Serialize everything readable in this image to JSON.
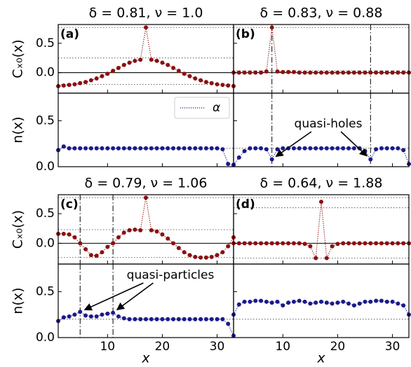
{
  "chart_data": [
    {
      "type": "line",
      "title": "δ = 0.81, ν = 1.0",
      "panel_label": "(a)",
      "ylabel": "Cₓ₀(x)",
      "x": [
        1,
        2,
        3,
        4,
        5,
        6,
        7,
        8,
        9,
        10,
        11,
        12,
        13,
        14,
        15,
        16,
        17,
        18,
        19,
        20,
        21,
        22,
        23,
        24,
        25,
        26,
        27,
        28,
        29,
        30,
        31,
        32,
        33
      ],
      "series": [
        {
          "color": "#8b1010",
          "values": [
            -0.23,
            -0.22,
            -0.21,
            -0.2,
            -0.18,
            -0.16,
            -0.13,
            -0.1,
            -0.06,
            -0.02,
            0.03,
            0.08,
            0.13,
            0.17,
            0.2,
            0.22,
            0.77,
            0.22,
            0.2,
            0.17,
            0.13,
            0.08,
            0.03,
            -0.02,
            -0.06,
            -0.1,
            -0.13,
            -0.16,
            -0.18,
            -0.2,
            -0.21,
            -0.22,
            -0.23
          ]
        }
      ],
      "xlim": [
        1,
        33
      ],
      "ylim": [
        -0.35,
        0.82
      ],
      "xticks": [
        10,
        20,
        30
      ],
      "yticks": [
        {
          "value": 0,
          "label": "0.0"
        },
        0.5
      ],
      "xtick_labels": false,
      "ytick_labels": true,
      "hlines": [
        {
          "value": 0,
          "style": "solid"
        },
        {
          "value": 0.77,
          "style": "dotted"
        },
        {
          "value": 0.25,
          "style": "dotted"
        },
        {
          "value": -0.2,
          "style": "dotted"
        }
      ],
      "vlines": []
    },
    {
      "type": "line",
      "ylabel": "n(x)",
      "x": [
        1,
        2,
        3,
        4,
        5,
        6,
        7,
        8,
        9,
        10,
        11,
        12,
        13,
        14,
        15,
        16,
        17,
        18,
        19,
        20,
        21,
        22,
        23,
        24,
        25,
        26,
        27,
        28,
        29,
        30,
        31,
        32,
        33
      ],
      "series": [
        {
          "name": "α",
          "color": "#1a1a8c",
          "values": [
            0.18,
            0.22,
            0.2,
            0.2,
            0.2,
            0.2,
            0.2,
            0.2,
            0.2,
            0.2,
            0.2,
            0.2,
            0.2,
            0.2,
            0.2,
            0.2,
            0.2,
            0.2,
            0.2,
            0.2,
            0.2,
            0.2,
            0.2,
            0.2,
            0.2,
            0.2,
            0.2,
            0.2,
            0.2,
            0.2,
            0.19,
            0.03,
            0.02
          ]
        }
      ],
      "xlim": [
        1,
        33
      ],
      "ylim": [
        0,
        0.8
      ],
      "xticks": [
        10,
        20,
        30
      ],
      "yticks": [
        {
          "value": 0,
          "label": "0.0"
        },
        0.5
      ],
      "xtick_labels": false,
      "ytick_labels": true,
      "legend": "upper right",
      "hlines": [
        {
          "value": 0.2,
          "style": "dotted"
        }
      ],
      "vlines": []
    },
    {
      "type": "line",
      "title": "δ = 0.83, ν = 0.88",
      "panel_label": "(b)",
      "x": [
        1,
        2,
        3,
        4,
        5,
        6,
        7,
        8,
        9,
        10,
        11,
        12,
        13,
        14,
        15,
        16,
        17,
        18,
        19,
        20,
        21,
        22,
        23,
        24,
        25,
        26,
        27,
        28,
        29,
        30,
        31,
        32,
        33
      ],
      "series": [
        {
          "color": "#8b1010",
          "values": [
            0,
            0,
            0,
            0,
            0,
            0,
            0.02,
            0.77,
            0.02,
            0.01,
            0.01,
            0.01,
            0,
            0,
            0,
            0,
            0,
            0,
            0,
            0,
            0,
            0,
            0,
            0,
            0,
            0,
            0,
            0,
            0,
            0,
            0,
            0,
            0
          ]
        }
      ],
      "xlim": [
        1,
        33
      ],
      "ylim": [
        -0.35,
        0.82
      ],
      "xticks": [
        10,
        20,
        30
      ],
      "yticks": [
        {
          "value": 0,
          "label": "0.0"
        },
        0.5
      ],
      "xtick_labels": false,
      "ytick_labels": false,
      "hlines": [
        {
          "value": 0,
          "style": "solid"
        },
        {
          "value": 0.77,
          "style": "dotted"
        },
        {
          "value": 0.03,
          "style": "dotted"
        }
      ],
      "vlines": [
        {
          "value": 8,
          "style": "dashdot"
        },
        {
          "value": 26,
          "style": "dashdot"
        }
      ]
    },
    {
      "type": "line",
      "x": [
        1,
        2,
        3,
        4,
        5,
        6,
        7,
        8,
        9,
        10,
        11,
        12,
        13,
        14,
        15,
        16,
        17,
        18,
        19,
        20,
        21,
        22,
        23,
        24,
        25,
        26,
        27,
        28,
        29,
        30,
        31,
        32,
        33
      ],
      "series": [
        {
          "color": "#1a1a8c",
          "values": [
            0.02,
            0.1,
            0.17,
            0.2,
            0.2,
            0.2,
            0.19,
            0.08,
            0.19,
            0.2,
            0.2,
            0.2,
            0.2,
            0.2,
            0.2,
            0.2,
            0.2,
            0.2,
            0.2,
            0.2,
            0.2,
            0.2,
            0.2,
            0.2,
            0.17,
            0.08,
            0.19,
            0.2,
            0.2,
            0.2,
            0.2,
            0.18,
            0.03
          ]
        }
      ],
      "xlim": [
        1,
        33
      ],
      "ylim": [
        0,
        0.8
      ],
      "xticks": [
        10,
        20,
        30
      ],
      "yticks": [
        {
          "value": 0,
          "label": "0.0"
        },
        0.5
      ],
      "xtick_labels": false,
      "ytick_labels": false,
      "hlines": [
        {
          "value": 0.2,
          "style": "dotted"
        }
      ],
      "vlines": [
        {
          "value": 8,
          "style": "dashdot"
        },
        {
          "value": 26,
          "style": "dashdot"
        }
      ],
      "annotation": {
        "text": "quasi-holes",
        "arrows_to": [
          8,
          26
        ]
      }
    },
    {
      "type": "line",
      "title": "δ = 0.79, ν = 1.06",
      "panel_label": "(c)",
      "ylabel": "Cₓ₀(x)",
      "x": [
        1,
        2,
        3,
        4,
        5,
        6,
        7,
        8,
        9,
        10,
        11,
        12,
        13,
        14,
        15,
        16,
        17,
        18,
        19,
        20,
        21,
        22,
        23,
        24,
        25,
        26,
        27,
        28,
        29,
        30,
        31,
        32,
        33
      ],
      "series": [
        {
          "color": "#8b1010",
          "values": [
            0.16,
            0.16,
            0.15,
            0.1,
            0,
            -0.1,
            -0.2,
            -0.21,
            -0.15,
            -0.06,
            0,
            0.1,
            0.18,
            0.22,
            0.23,
            0.22,
            0.77,
            0.22,
            0.2,
            0.15,
            0.08,
            0,
            -0.08,
            -0.15,
            -0.2,
            -0.23,
            -0.24,
            -0.24,
            -0.23,
            -0.2,
            -0.15,
            -0.05,
            0.1
          ]
        }
      ],
      "xlim": [
        1,
        33
      ],
      "ylim": [
        -0.35,
        0.82
      ],
      "xticks": [
        10,
        20,
        30
      ],
      "yticks": [
        {
          "value": 0,
          "label": "0.0"
        },
        0.5
      ],
      "xtick_labels": false,
      "ytick_labels": true,
      "hlines": [
        {
          "value": 0,
          "style": "solid"
        },
        {
          "value": 0.77,
          "style": "dotted"
        },
        {
          "value": 0.23,
          "style": "dotted"
        },
        {
          "value": -0.24,
          "style": "dotted"
        }
      ],
      "vlines": [
        {
          "value": 5,
          "style": "dashdot"
        },
        {
          "value": 11,
          "style": "dashdot"
        }
      ]
    },
    {
      "type": "line",
      "ylabel": "n(x)",
      "xlabel": "x",
      "x": [
        1,
        2,
        3,
        4,
        5,
        6,
        7,
        8,
        9,
        10,
        11,
        12,
        13,
        14,
        15,
        16,
        17,
        18,
        19,
        20,
        21,
        22,
        23,
        24,
        25,
        26,
        27,
        28,
        29,
        30,
        31,
        32,
        33
      ],
      "series": [
        {
          "color": "#1a1a8c",
          "values": [
            0.18,
            0.22,
            0.23,
            0.25,
            0.28,
            0.24,
            0.23,
            0.23,
            0.25,
            0.26,
            0.27,
            0.23,
            0.21,
            0.2,
            0.2,
            0.2,
            0.2,
            0.2,
            0.2,
            0.2,
            0.2,
            0.2,
            0.2,
            0.2,
            0.2,
            0.2,
            0.2,
            0.2,
            0.2,
            0.2,
            0.2,
            0.15,
            0.02
          ]
        }
      ],
      "xlim": [
        1,
        33
      ],
      "ylim": [
        0,
        0.8
      ],
      "xticks": [
        10,
        20,
        30
      ],
      "yticks": [
        {
          "value": 0,
          "label": "0.0"
        },
        0.5
      ],
      "xtick_labels": true,
      "ytick_labels": true,
      "hlines": [
        {
          "value": 0.2,
          "style": "dotted"
        }
      ],
      "vlines": [
        {
          "value": 5,
          "style": "dashdot"
        },
        {
          "value": 11,
          "style": "dashdot"
        }
      ],
      "annotation": {
        "text": "quasi-particles",
        "arrows_to": [
          5,
          11
        ]
      }
    },
    {
      "type": "line",
      "title": "δ = 0.64, ν = 1.88",
      "panel_label": "(d)",
      "x": [
        1,
        2,
        3,
        4,
        5,
        6,
        7,
        8,
        9,
        10,
        11,
        12,
        13,
        14,
        15,
        16,
        17,
        18,
        19,
        20,
        21,
        22,
        23,
        24,
        25,
        26,
        27,
        28,
        29,
        30,
        31,
        32,
        33
      ],
      "series": [
        {
          "color": "#8b1010",
          "values": [
            0,
            0,
            0,
            0,
            0,
            0,
            0,
            0,
            0,
            0,
            0,
            0,
            0,
            -0.01,
            -0.05,
            -0.25,
            0.7,
            -0.25,
            -0.05,
            -0.01,
            0,
            0,
            0,
            0,
            0,
            0,
            0,
            0,
            0,
            0,
            0,
            0,
            0
          ]
        }
      ],
      "xlim": [
        1,
        33
      ],
      "ylim": [
        -0.35,
        0.82
      ],
      "xticks": [
        10,
        20,
        30
      ],
      "yticks": [
        {
          "value": 0,
          "label": "0.0"
        },
        0.5
      ],
      "xtick_labels": false,
      "ytick_labels": false,
      "hlines": [
        {
          "value": 0,
          "style": "solid"
        },
        {
          "value": 0.77,
          "style": "dotted"
        },
        {
          "value": 0.6,
          "style": "dotted"
        },
        {
          "value": -0.25,
          "style": "dotted"
        }
      ],
      "vlines": []
    },
    {
      "type": "line",
      "xlabel": "x",
      "x": [
        1,
        2,
        3,
        4,
        5,
        6,
        7,
        8,
        9,
        10,
        11,
        12,
        13,
        14,
        15,
        16,
        17,
        18,
        19,
        20,
        21,
        22,
        23,
        24,
        25,
        26,
        27,
        28,
        29,
        30,
        31,
        32,
        33
      ],
      "series": [
        {
          "color": "#1a1a8c",
          "values": [
            0.25,
            0.36,
            0.39,
            0.39,
            0.4,
            0.4,
            0.39,
            0.38,
            0.39,
            0.35,
            0.38,
            0.39,
            0.4,
            0.39,
            0.37,
            0.38,
            0.39,
            0.38,
            0.37,
            0.38,
            0.39,
            0.37,
            0.35,
            0.37,
            0.39,
            0.39,
            0.4,
            0.4,
            0.39,
            0.39,
            0.37,
            0.35,
            0.25
          ]
        }
      ],
      "xlim": [
        1,
        33
      ],
      "ylim": [
        0,
        0.8
      ],
      "xticks": [
        10,
        20,
        30
      ],
      "yticks": [
        {
          "value": 0,
          "label": "0.0"
        },
        0.5
      ],
      "xtick_labels": true,
      "ytick_labels": false,
      "hlines": [
        {
          "value": 0.2,
          "style": "dotted"
        }
      ],
      "vlines": []
    }
  ]
}
